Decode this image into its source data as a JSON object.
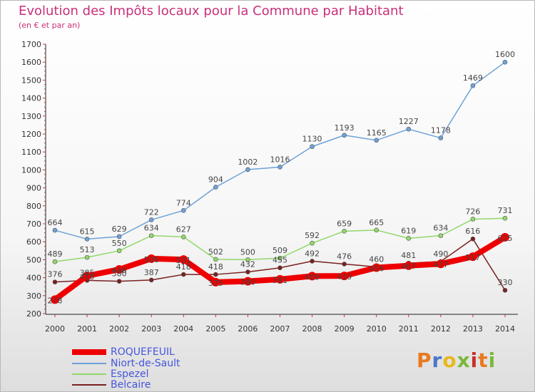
{
  "title": "Evolution des Impôts locaux pour la Commune par Habitant",
  "subtitle": "(en € et par an)",
  "logo": {
    "chars": [
      "P",
      "r",
      "o",
      "x",
      "i",
      "t",
      "i"
    ],
    "colors": [
      "#e87a1f",
      "#4a78c8",
      "#e8b81f",
      "#7ab83a",
      "#c8302a",
      "#e87a1f",
      "#7ab83a"
    ]
  },
  "chart_data": {
    "type": "line",
    "x": [
      "2000",
      "2001",
      "2002",
      "2003",
      "2004",
      "2005",
      "2006",
      "2007",
      "2008",
      "2009",
      "2010",
      "2011",
      "2012",
      "2013",
      "2014"
    ],
    "ylim": [
      200,
      1700
    ],
    "yticks": [
      "200",
      "300",
      "400",
      "500",
      "600",
      "700",
      "800",
      "900",
      "1000",
      "1100",
      "1200",
      "1300",
      "1400",
      "1500",
      "1600",
      "1700"
    ],
    "grid": false,
    "legend": "bottom-left",
    "series": [
      {
        "name": "ROQUEFEUIL",
        "color": "#ee0000",
        "width": 8,
        "values": [
          278,
          410,
          446,
          506,
          501,
          375,
          380,
          391,
          409,
          410,
          456,
          467,
          477,
          517,
          625
        ],
        "labels": [
          "278",
          "410",
          "446",
          "506",
          "501",
          "375",
          "380",
          "391",
          "409",
          "410",
          "456",
          "467",
          "477",
          "517",
          "625"
        ]
      },
      {
        "name": "Niort-de-Sault",
        "color": "#6ea2d8",
        "width": 1.5,
        "values": [
          664,
          615,
          629,
          722,
          774,
          904,
          1002,
          1016,
          1130,
          1193,
          1165,
          1227,
          1178,
          1469,
          1600
        ],
        "labels": [
          "664",
          "615",
          "629",
          "722",
          "774",
          "904",
          "1002",
          "1016",
          "1130",
          "1193",
          "1165",
          "1227",
          "1178",
          "1469",
          "1600"
        ]
      },
      {
        "name": "Espezel",
        "color": "#90d868",
        "width": 1.5,
        "values": [
          489,
          513,
          550,
          634,
          627,
          502,
          500,
          509,
          592,
          659,
          665,
          619,
          634,
          726,
          731
        ],
        "labels": [
          "489",
          "513",
          "550",
          "634",
          "627",
          "502",
          "500",
          "509",
          "592",
          "659",
          "665",
          "619",
          "634",
          "726",
          "731"
        ]
      },
      {
        "name": "Belcaire",
        "color": "#7a2020",
        "width": 1.5,
        "values": [
          376,
          385,
          380,
          387,
          418,
          418,
          432,
          455,
          492,
          476,
          460,
          481,
          490,
          616,
          330
        ],
        "labels": [
          "376",
          "385",
          "380",
          "387",
          "418",
          "418",
          "432",
          "455",
          "492",
          "476",
          "460",
          "481",
          "490",
          "616",
          "330"
        ]
      }
    ]
  }
}
